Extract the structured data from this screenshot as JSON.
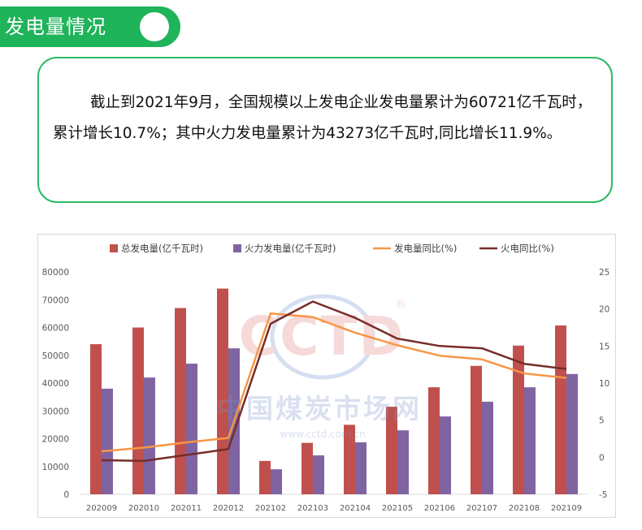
{
  "header": {
    "title": "发电量情况",
    "accent_color": "#1fb35a"
  },
  "summary": {
    "text": "截止到2021年9月，全国规模以上发电企业发电量累计为60721亿千瓦时，累计增长10.7%；其中火力发电量累计为43273亿千瓦时,同比增长11.9%。"
  },
  "watermark": {
    "logo": "CCTD",
    "registered_mark": "®",
    "name": "中国煤炭市场网",
    "url": "www.cctd.com.cn"
  },
  "chart_data": {
    "type": "bar",
    "combo": "bar+line",
    "categories": [
      "202009",
      "202010",
      "202011",
      "202012",
      "202102",
      "202103",
      "202104",
      "202105",
      "202106",
      "202107",
      "202108",
      "202109"
    ],
    "series": [
      {
        "name": "总发电量(亿千瓦时)",
        "type": "bar",
        "axis": "left",
        "color": "#c0504d",
        "values": [
          54000,
          60000,
          67000,
          74000,
          12000,
          18500,
          25000,
          31500,
          38500,
          46200,
          53500,
          60721
        ]
      },
      {
        "name": "火力发电量(亿千瓦时)",
        "type": "bar",
        "axis": "left",
        "color": "#8064a2",
        "values": [
          38000,
          42000,
          47000,
          52500,
          9000,
          14000,
          18700,
          23000,
          28000,
          33300,
          38500,
          43273
        ]
      },
      {
        "name": "发电量同比(%)",
        "type": "line",
        "axis": "right",
        "color": "#f79646",
        "values": [
          0.8,
          1.3,
          2.0,
          2.6,
          19.4,
          18.9,
          16.8,
          15.1,
          13.7,
          13.2,
          11.3,
          10.7
        ]
      },
      {
        "name": "火电同比(%)",
        "type": "line",
        "axis": "right",
        "color": "#772c2a",
        "values": [
          -0.4,
          -0.5,
          0.3,
          1.1,
          18.0,
          21.0,
          18.8,
          16.0,
          15.0,
          14.7,
          12.6,
          11.9
        ]
      }
    ],
    "left_axis": {
      "min": 0,
      "max": 80000,
      "ticks": [
        0,
        10000,
        20000,
        30000,
        40000,
        50000,
        60000,
        70000,
        80000
      ]
    },
    "right_axis": {
      "min": -5,
      "max": 25,
      "ticks": [
        -5,
        0,
        5,
        10,
        15,
        20,
        25
      ]
    },
    "grid": false,
    "legend_position": "top"
  }
}
